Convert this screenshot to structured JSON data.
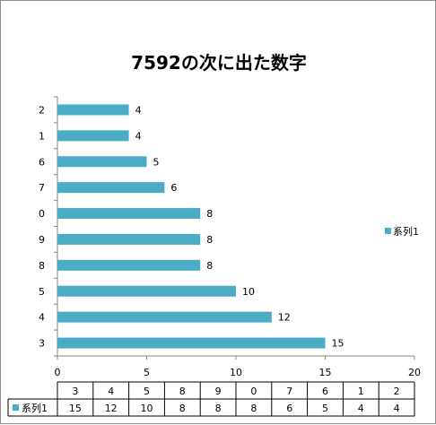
{
  "chart_data": {
    "type": "bar",
    "orientation": "horizontal",
    "title": "7592の次に出た数字",
    "categories": [
      "3",
      "4",
      "5",
      "8",
      "9",
      "0",
      "7",
      "6",
      "1",
      "2"
    ],
    "series": [
      {
        "name": "系列1",
        "values": [
          15,
          12,
          10,
          8,
          8,
          8,
          6,
          5,
          4,
          4
        ],
        "color": "#4bacc6"
      }
    ],
    "xlim": [
      0,
      20
    ],
    "xticks": [
      0,
      5,
      10,
      15,
      20
    ],
    "grid": false,
    "legend": "right",
    "data_table": true
  }
}
